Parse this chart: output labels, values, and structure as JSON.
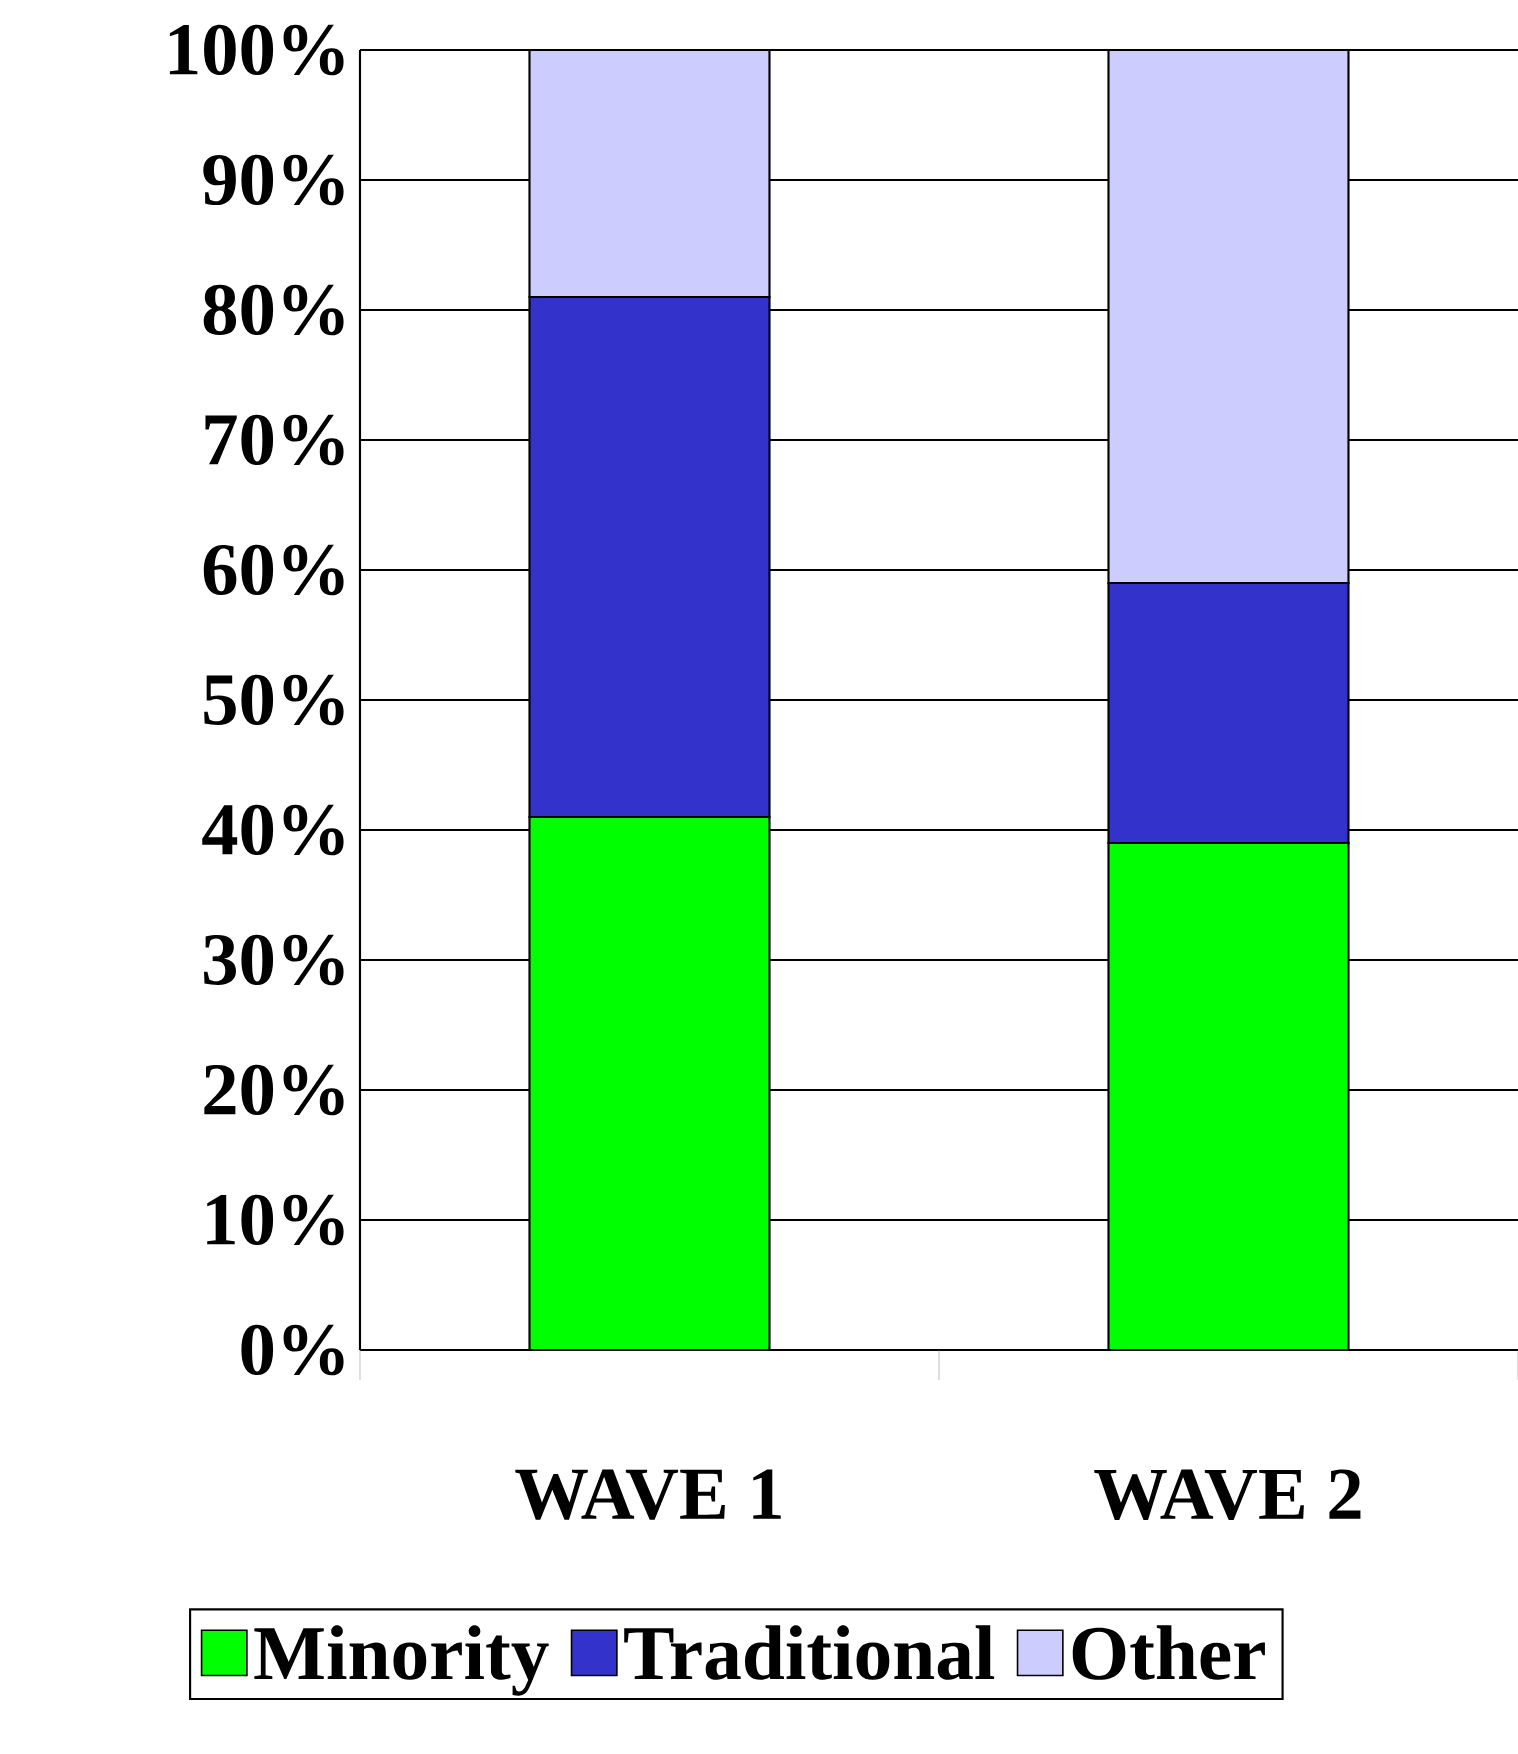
{
  "chart_data": {
    "type": "bar",
    "stacked": true,
    "categories": [
      "WAVE 1",
      "WAVE 2"
    ],
    "series": [
      {
        "name": "Minority",
        "color": "#00ff00",
        "values": [
          41,
          39
        ]
      },
      {
        "name": "Traditional",
        "color": "#3333cc",
        "values": [
          40,
          20
        ]
      },
      {
        "name": "Other",
        "color": "#ccccff",
        "values": [
          19,
          41
        ]
      }
    ],
    "ylim": [
      0,
      100
    ],
    "yticks": [
      {
        "value": 0,
        "label": "0%"
      },
      {
        "value": 10,
        "label": "10%"
      },
      {
        "value": 20,
        "label": "20%"
      },
      {
        "value": 30,
        "label": "30%"
      },
      {
        "value": 40,
        "label": "40%"
      },
      {
        "value": 50,
        "label": "50%"
      },
      {
        "value": 60,
        "label": "60%"
      },
      {
        "value": 70,
        "label": "70%"
      },
      {
        "value": 80,
        "label": "80%"
      },
      {
        "value": 90,
        "label": "90%"
      },
      {
        "value": 100,
        "label": "100%"
      }
    ],
    "grid": "y",
    "legend": "bottom"
  }
}
